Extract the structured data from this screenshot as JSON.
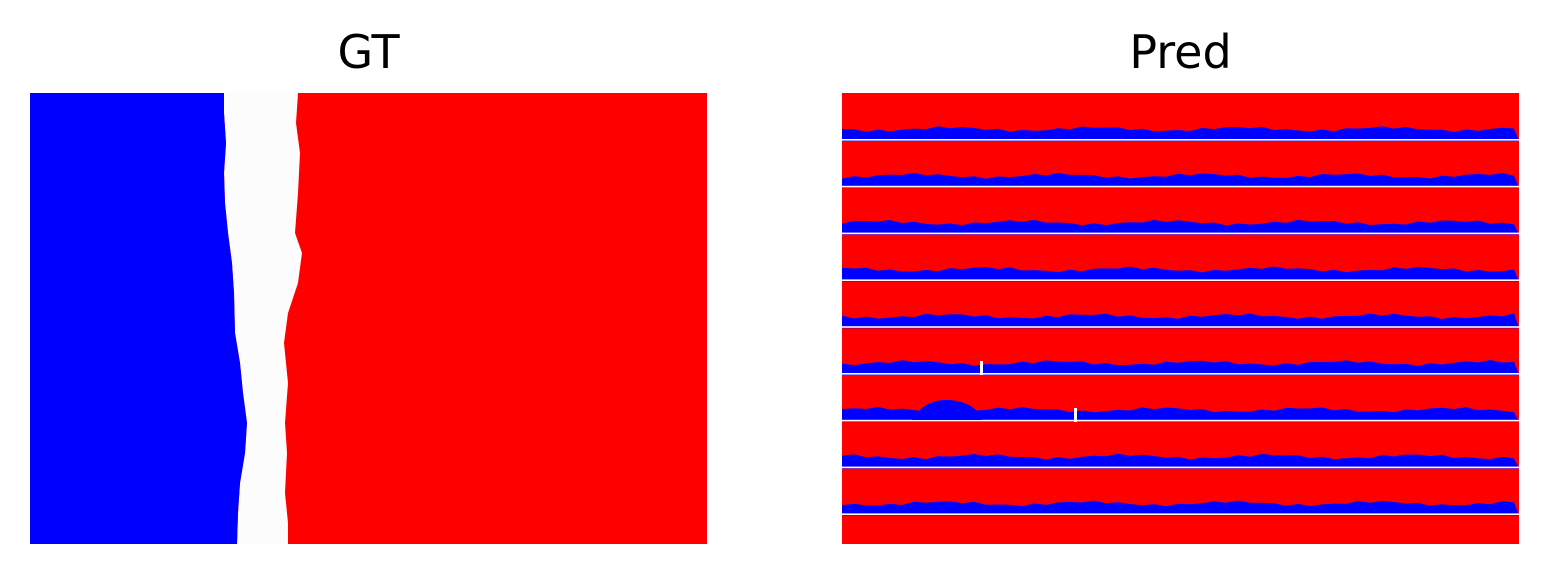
{
  "panels": {
    "gt": {
      "title": "GT"
    },
    "pred": {
      "title": "Pred"
    }
  },
  "colors": {
    "class_a": "#0000ff",
    "class_b": "#ff0000",
    "background": "#fcfcfc",
    "page": "#ffffff"
  }
}
